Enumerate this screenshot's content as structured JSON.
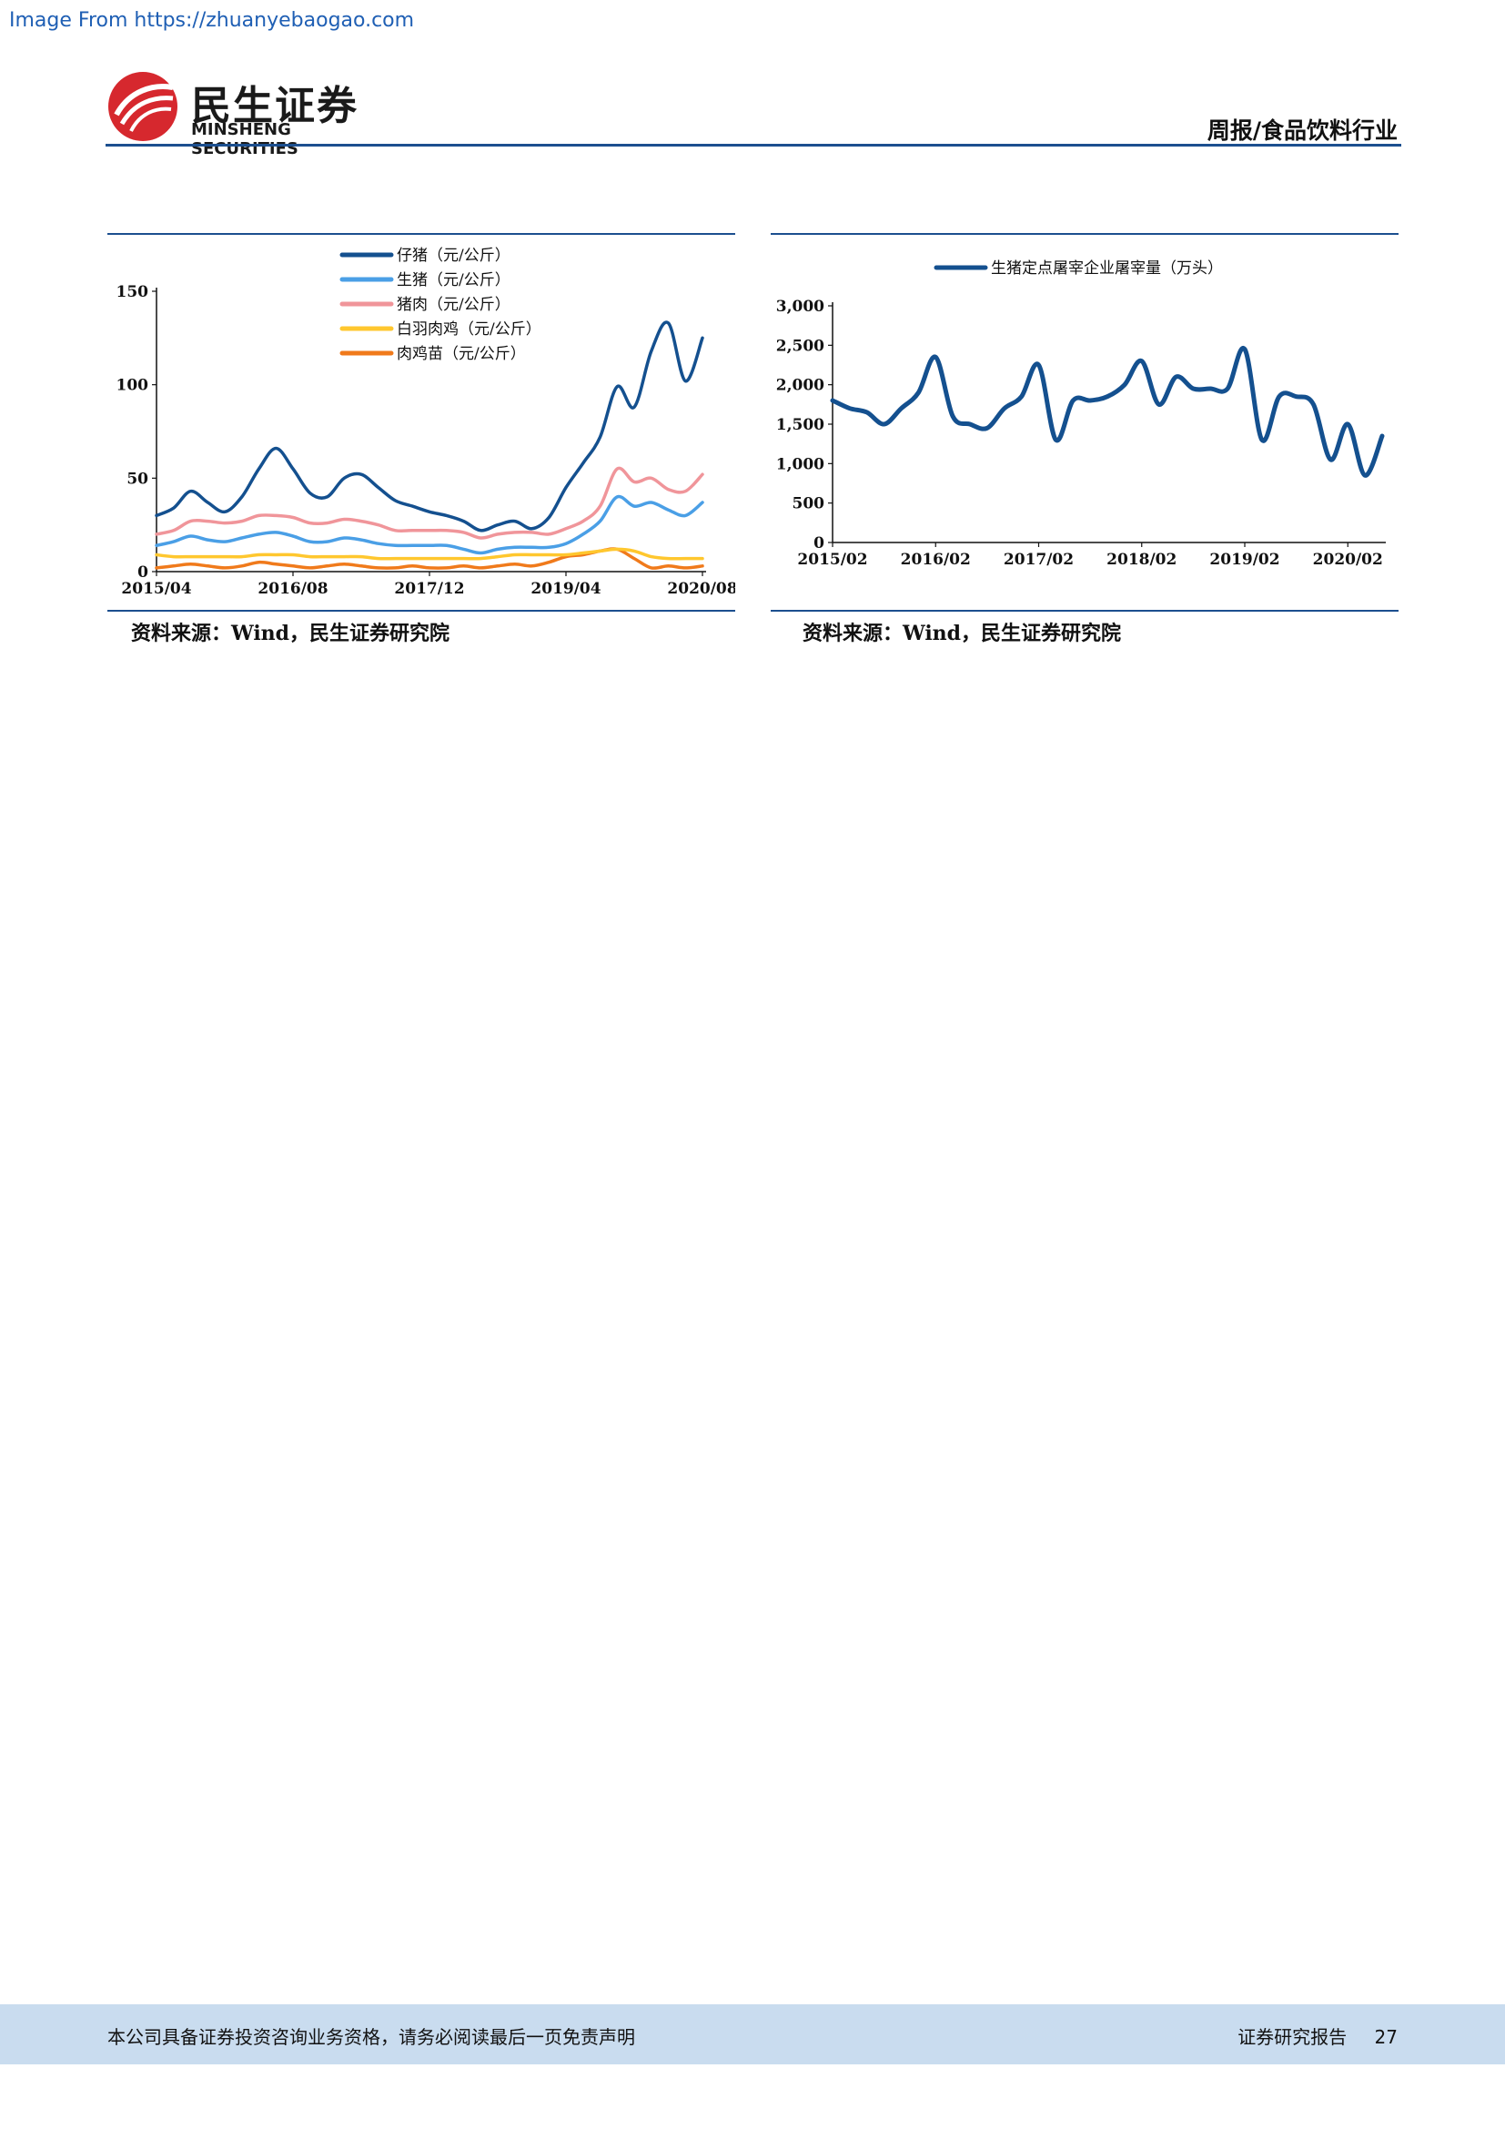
{
  "watermark": "Image From https://zhuanyebaogao.com",
  "brand": {
    "cn": "民生证券",
    "en": "MINSHENG SECURITIES"
  },
  "header": {
    "right": "周报/食品饮料行业"
  },
  "footer": {
    "disclaimer": "本公司具备证券投资咨询业务资格，请务必阅读最后一页免责声明",
    "report_type": "证券研究报告",
    "page": "27"
  },
  "colors": {
    "brand_red": "#d6282e",
    "rule_blue": "#1c4f8f",
    "footer_bg": "#c9dcef"
  },
  "charts": [
    {
      "source": "资料来源：Wind，民生证券研究院"
    },
    {
      "source": "资料来源：Wind，民生证券研究院"
    }
  ],
  "chart_data": [
    {
      "type": "line",
      "ylim": [
        0,
        150
      ],
      "yticks": [
        "0",
        "50",
        "100",
        "150"
      ],
      "xticks": [
        "2015/04",
        "2016/08",
        "2017/12",
        "2019/04",
        "2020/08"
      ],
      "legend_position": "top",
      "grid": false,
      "x": [
        "2015/04",
        "2015/06",
        "2015/08",
        "2015/10",
        "2015/12",
        "2016/02",
        "2016/04",
        "2016/06",
        "2016/08",
        "2016/10",
        "2016/12",
        "2017/02",
        "2017/04",
        "2017/06",
        "2017/08",
        "2017/10",
        "2017/12",
        "2018/02",
        "2018/04",
        "2018/06",
        "2018/08",
        "2018/10",
        "2018/12",
        "2019/02",
        "2019/04",
        "2019/06",
        "2019/08",
        "2019/10",
        "2019/12",
        "2020/02",
        "2020/04",
        "2020/06",
        "2020/08"
      ],
      "series": [
        {
          "name": "仔猪（元/公斤）",
          "color": "#14508f",
          "values": [
            30,
            34,
            43,
            37,
            32,
            40,
            55,
            66,
            55,
            42,
            40,
            50,
            52,
            45,
            38,
            35,
            32,
            30,
            27,
            22,
            25,
            27,
            23,
            29,
            45,
            58,
            72,
            99,
            88,
            118,
            133,
            102,
            125
          ]
        },
        {
          "name": "生猪（元/公斤）",
          "color": "#4a9fe6",
          "values": [
            14,
            16,
            19,
            17,
            16,
            18,
            20,
            21,
            19,
            16,
            16,
            18,
            17,
            15,
            14,
            14,
            14,
            14,
            12,
            10,
            12,
            13,
            13,
            13,
            15,
            20,
            27,
            40,
            35,
            37,
            33,
            30,
            37
          ]
        },
        {
          "name": "猪肉（元/公斤）",
          "color": "#f0959a",
          "values": [
            20,
            22,
            27,
            27,
            26,
            27,
            30,
            30,
            29,
            26,
            26,
            28,
            27,
            25,
            22,
            22,
            22,
            22,
            21,
            18,
            20,
            21,
            21,
            20,
            23,
            27,
            35,
            55,
            48,
            50,
            44,
            43,
            52
          ]
        },
        {
          "name": "白羽肉鸡（元/公斤）",
          "color": "#ffc72e",
          "values": [
            9,
            8,
            8,
            8,
            8,
            8,
            9,
            9,
            9,
            8,
            8,
            8,
            8,
            7,
            7,
            7,
            7,
            7,
            7,
            7,
            8,
            9,
            9,
            9,
            9,
            10,
            11,
            12,
            11,
            8,
            7,
            7,
            7
          ]
        },
        {
          "name": "肉鸡苗（元/公斤）",
          "color": "#f07a1b",
          "values": [
            2,
            3,
            4,
            3,
            2,
            3,
            5,
            4,
            3,
            2,
            3,
            4,
            3,
            2,
            2,
            3,
            2,
            2,
            3,
            2,
            3,
            4,
            3,
            5,
            8,
            9,
            11,
            12,
            7,
            2,
            3,
            2,
            3
          ]
        }
      ]
    },
    {
      "type": "line",
      "ylim": [
        0,
        3000
      ],
      "yticks": [
        "0",
        "500",
        "1,000",
        "1,500",
        "2,000",
        "2,500",
        "3,000"
      ],
      "xticks": [
        "2015/02",
        "2016/02",
        "2017/02",
        "2018/02",
        "2019/02",
        "2020/02"
      ],
      "legend_position": "top",
      "grid": false,
      "x": [
        "2015/02",
        "2015/04",
        "2015/06",
        "2015/08",
        "2015/10",
        "2015/12",
        "2016/02",
        "2016/04",
        "2016/06",
        "2016/08",
        "2016/10",
        "2016/12",
        "2017/02",
        "2017/04",
        "2017/06",
        "2017/08",
        "2017/10",
        "2017/12",
        "2018/02",
        "2018/04",
        "2018/06",
        "2018/08",
        "2018/10",
        "2018/12",
        "2019/02",
        "2019/04",
        "2019/06",
        "2019/08",
        "2019/10",
        "2019/12",
        "2020/02",
        "2020/04",
        "2020/06"
      ],
      "series": [
        {
          "name": "生猪定点屠宰企业屠宰量（万头）",
          "color": "#14508f",
          "values": [
            1800,
            1700,
            1650,
            1500,
            1700,
            1900,
            2350,
            1600,
            1500,
            1450,
            1700,
            1850,
            2250,
            1300,
            1800,
            1800,
            1850,
            2000,
            2300,
            1750,
            2100,
            1950,
            1950,
            1950,
            2450,
            1300,
            1850,
            1850,
            1750,
            1050,
            1500,
            850,
            1350
          ]
        }
      ]
    }
  ]
}
